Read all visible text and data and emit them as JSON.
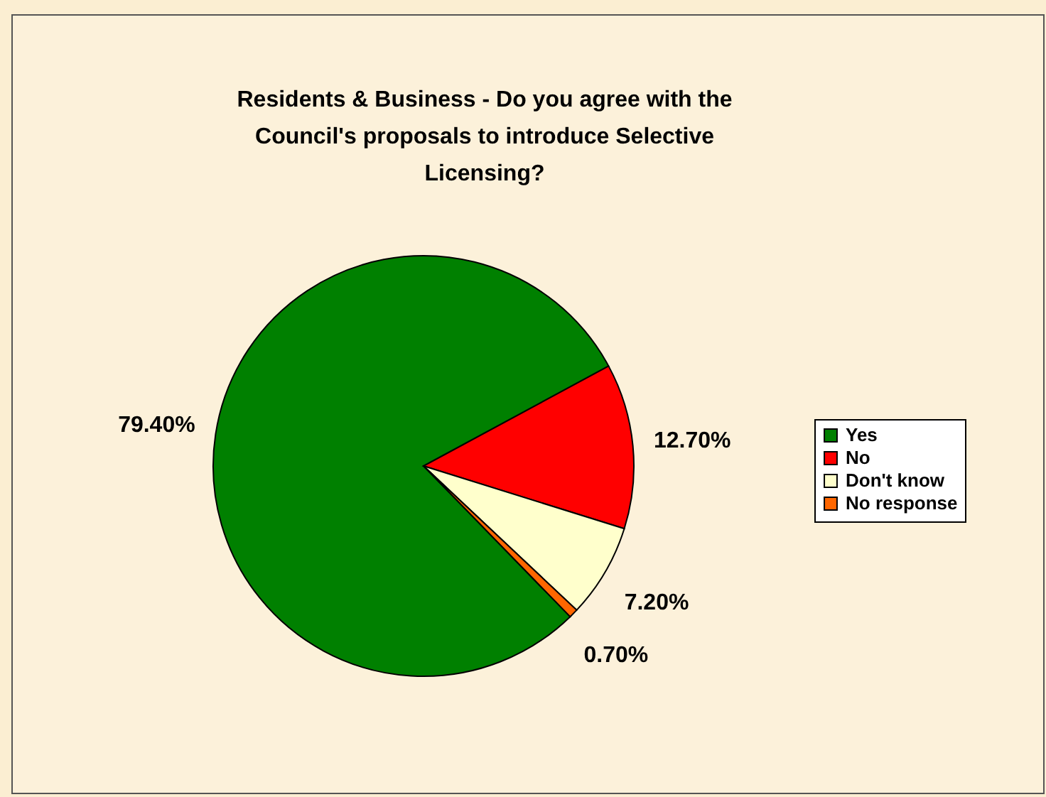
{
  "chart_data": {
    "type": "pie",
    "title": "Residents & Business - Do you agree with the Council's proposals to introduce Selective Licensing?",
    "categories": [
      "Yes",
      "No",
      "Don't know",
      "No response"
    ],
    "values": [
      79.4,
      12.7,
      7.2,
      0.7
    ],
    "colors": [
      "#008000",
      "#ff0000",
      "#ffffcc",
      "#ff6600"
    ],
    "value_labels": [
      "79.40%",
      "12.70%",
      "7.20%",
      "0.70%"
    ],
    "legend": "right"
  }
}
